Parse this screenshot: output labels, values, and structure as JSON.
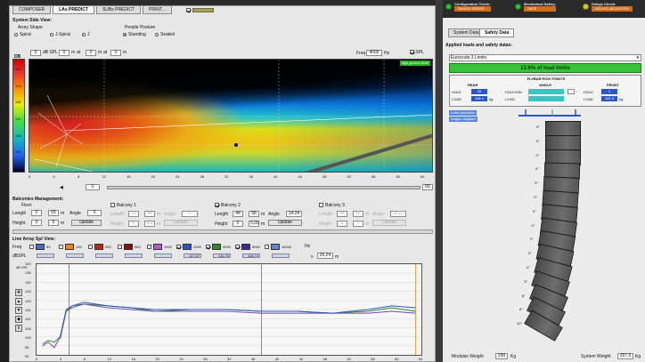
{
  "tabs": [
    "COMPOSER",
    "LAs PREDICT",
    "SUBs PREDICT",
    "PRINT..."
  ],
  "active_tab": 1,
  "side_view": {
    "title": "System Side View:",
    "array_shape_label": "Array Shape",
    "array_shapes": [
      "Spiral",
      "J-Spiral",
      "J"
    ],
    "people_posture_label": "People Posture",
    "postures": [
      "Standing",
      "Seated"
    ],
    "cursor_label": "dB SPL",
    "cursor_db": "0",
    "cursor_m": "0",
    "cursor_x": "0",
    "cursor_y": "0",
    "unit_m": "m",
    "unit_at": "at",
    "freq_label": "Freq",
    "freq_value": "4000",
    "freq_unit": "Hz",
    "spl_label": "SPL",
    "colorbar_title": "DB",
    "colorbar_ticks": [
      "133",
      "124",
      "118",
      "112",
      "106",
      "100",
      "94"
    ],
    "x_ticks": [
      "0",
      "4",
      "8",
      "12",
      "16",
      "20",
      "24",
      "28",
      "32",
      "36",
      "40",
      "44",
      "48",
      "52",
      "56",
      "60",
      "64"
    ],
    "range_start": "0",
    "range_end": "65",
    "badge": "high ground level"
  },
  "balconies": {
    "title": "Balconies Management:",
    "floor_label": "Floor",
    "length_label": "Length",
    "height_label": "Height",
    "angle_label": "Angle",
    "update_label": "Update",
    "unit_m": "m",
    "floor": {
      "length_a": "0",
      "length_b": "65",
      "angle": "0",
      "height_a": "0",
      "height_b": "0"
    },
    "items": [
      {
        "name": "Balcony 1",
        "checked": false,
        "length_a": "23",
        "length_b": "44",
        "angle": "0",
        "height_a": "4",
        "height_b": "8.5"
      },
      {
        "name": "Balcony 2",
        "checked": true,
        "length_a": "44",
        "length_b": "58",
        "angle": "14,04",
        "height_a": "0",
        "height_b": "5,00"
      },
      {
        "name": "Balcony 3",
        "checked": false,
        "length_a": "44",
        "length_b": "60",
        "angle": "26,22",
        "height_a": "0",
        "height_b": "0"
      }
    ]
  },
  "spl_view": {
    "title": "Line Array Spl View:",
    "freq_label": "Freq",
    "dbspl_label": "dBSPL",
    "freqs": [
      "63",
      "125",
      "250",
      "500",
      "1000",
      "2000",
      "4000",
      "8000",
      "16000"
    ],
    "spl_values": [
      "",
      "",
      "",
      "",
      "",
      "117,37",
      "114,76",
      "118,74",
      ""
    ],
    "hz_label": "Hz",
    "x_label": "x",
    "x_value": "26,24",
    "x_unit": "m",
    "axis_title": "dB SPL",
    "y_ticks": [
      "140",
      "135",
      "130",
      "125",
      "120",
      "115",
      "110",
      "105",
      "100",
      "95",
      "90"
    ],
    "x_ticks": [
      "0",
      "4",
      "8",
      "12",
      "16",
      "20",
      "24",
      "28",
      "32",
      "36",
      "40",
      "44",
      "48",
      "52",
      "56",
      "60",
      "64"
    ]
  },
  "status": [
    {
      "label": "Configuration Check:",
      "sub": "RANGE ERROR"
    },
    {
      "label": "Mechanical Safety:",
      "sub": "SAFE"
    },
    {
      "label": "Delays Check:",
      "sub": "DELAYS ADJUSTED"
    }
  ],
  "right_tabs": [
    "System Data",
    "Safety Data"
  ],
  "right_active": 1,
  "safety": {
    "title": "Applied loads and safety datas:",
    "dropdown": "Eurocode 3 Limits",
    "percent": "13.8% of load limits",
    "flyable_title": "FLYBAR PICK POINTS",
    "headers": [
      "REAR",
      "ANGLE",
      "FRONT"
    ],
    "hole_label": "HOLE",
    "load_label": "LOAD",
    "rear_hole": "26",
    "rear_load": "156.4",
    "angle_label": "HOLE/SIN",
    "angle_value": "-",
    "front_hole": "1",
    "front_load": "151.3",
    "kg": "kg",
    "deg": "°",
    "tag1": "Load indication",
    "tag2": "Angles diagram",
    "cabinet_angles": [
      "0°",
      "0°",
      "0°",
      "0°",
      "0°",
      "0°",
      "0°",
      "0°",
      "2°",
      "3°",
      "4°",
      "5°",
      "6°",
      "8°",
      "10°"
    ],
    "modules_weight_label": "Modules Weight",
    "modules_weight": "299",
    "system_weight_label": "System Weight",
    "system_weight": "267.5",
    "kg_unit": "Kg"
  },
  "colors": {
    "accent": "#d46a12",
    "green": "#38c238",
    "blue": "#2b56c8",
    "cyan": "#3ec3c3"
  },
  "chart_data": {
    "type": "line",
    "title": "",
    "xlabel": "",
    "ylabel": "dB SPL",
    "xlim": [
      0,
      65
    ],
    "ylim": [
      90,
      140
    ],
    "series": [
      {
        "name": "2000",
        "x": [
          1,
          2,
          3,
          4,
          5,
          6,
          8,
          12,
          16,
          20,
          26,
          32,
          38,
          44,
          50,
          56,
          60,
          64
        ],
        "values": [
          96,
          98,
          97,
          100,
          115,
          117,
          118,
          117,
          116,
          114,
          115,
          115,
          114,
          114,
          113,
          114,
          116,
          114
        ]
      },
      {
        "name": "4000",
        "x": [
          1,
          2,
          3,
          4,
          5,
          6,
          8,
          12,
          16,
          20,
          26,
          32,
          38,
          44,
          50,
          56,
          60,
          64
        ],
        "values": [
          95,
          97,
          94,
          100,
          114,
          116,
          118,
          116,
          115,
          114,
          114,
          114,
          113,
          113,
          113,
          113,
          114,
          113
        ]
      },
      {
        "name": "8000",
        "x": [
          4,
          5,
          6,
          8,
          12,
          16,
          20,
          26,
          32,
          38,
          44,
          50,
          56,
          60,
          64
        ],
        "values": [
          99,
          114,
          117,
          119,
          117,
          116,
          115,
          115,
          115,
          114,
          114,
          113,
          115,
          117,
          116
        ]
      }
    ]
  }
}
